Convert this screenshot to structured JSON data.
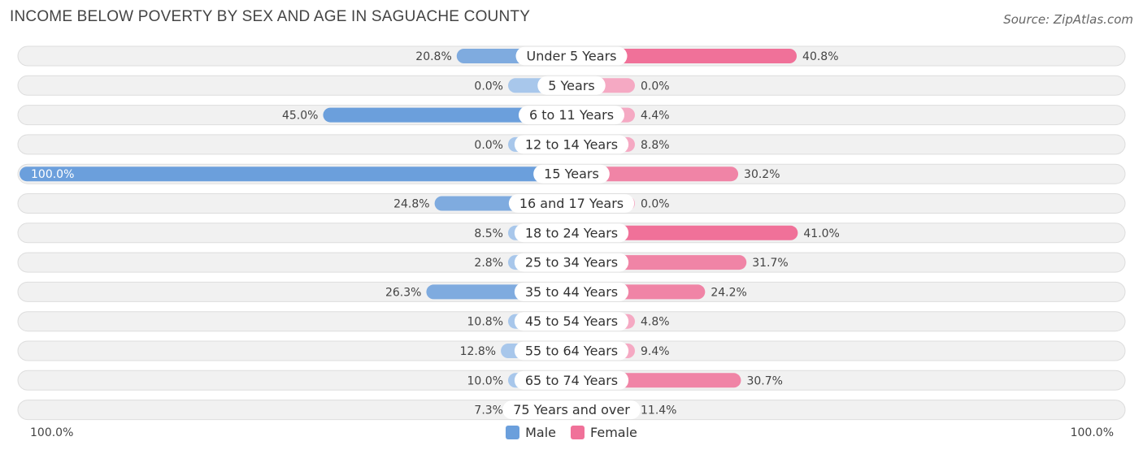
{
  "title": "INCOME BELOW POVERTY BY SEX AND AGE IN SAGUACHE COUNTY",
  "source": "Source: ZipAtlas.com",
  "colors": {
    "male_strong": "#6b9fdc",
    "male_light": "#a8c7eb",
    "female_strong": "#f07199",
    "female_light": "#f5a9c3",
    "row_bg": "#f1f1f1",
    "row_border": "#dddddd"
  },
  "legend": {
    "male": "Male",
    "female": "Female"
  },
  "axis": {
    "left_label": "100.0%",
    "right_label": "100.0%"
  },
  "chart_data": {
    "type": "bar",
    "orientation": "horizontal-diverging",
    "title": "INCOME BELOW POVERTY BY SEX AND AGE IN SAGUACHE COUNTY",
    "xlim": [
      -100,
      100
    ],
    "categories": [
      "Under 5 Years",
      "5 Years",
      "6 to 11 Years",
      "12 to 14 Years",
      "15 Years",
      "16 and 17 Years",
      "18 to 24 Years",
      "25 to 34 Years",
      "35 to 44 Years",
      "45 to 54 Years",
      "55 to 64 Years",
      "65 to 74 Years",
      "75 Years and over"
    ],
    "series": [
      {
        "name": "Male",
        "values": [
          20.8,
          0.0,
          45.0,
          0.0,
          100.0,
          24.8,
          8.5,
          2.8,
          26.3,
          10.8,
          12.8,
          10.0,
          7.3
        ],
        "labels": [
          "20.8%",
          "0.0%",
          "45.0%",
          "0.0%",
          "100.0%",
          "24.8%",
          "8.5%",
          "2.8%",
          "26.3%",
          "10.8%",
          "12.8%",
          "10.0%",
          "7.3%"
        ]
      },
      {
        "name": "Female",
        "values": [
          40.8,
          0.0,
          4.4,
          8.8,
          30.2,
          0.0,
          41.0,
          31.7,
          24.2,
          4.8,
          9.4,
          30.7,
          11.4
        ],
        "labels": [
          "40.8%",
          "0.0%",
          "4.4%",
          "8.8%",
          "30.2%",
          "0.0%",
          "41.0%",
          "31.7%",
          "24.2%",
          "4.8%",
          "9.4%",
          "30.7%",
          "11.4%"
        ]
      }
    ],
    "legend_position": "bottom-center"
  }
}
